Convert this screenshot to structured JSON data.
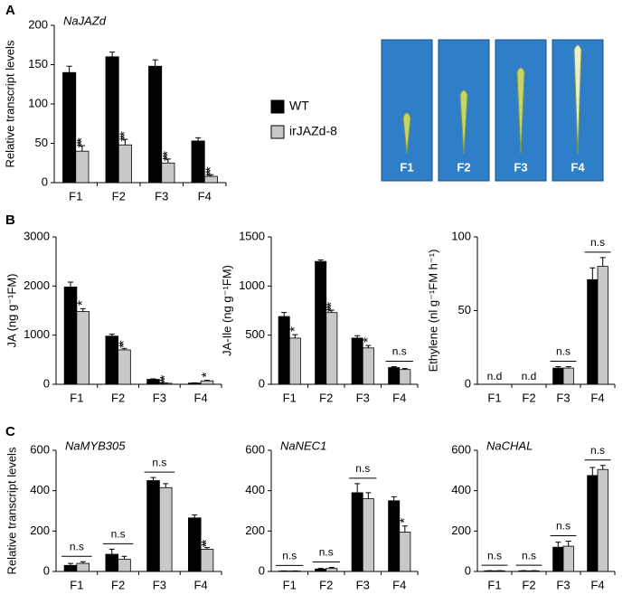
{
  "panels": [
    "A",
    "B",
    "C"
  ],
  "photos": [
    "F1",
    "F2",
    "F3",
    "F4"
  ],
  "chart_data": [
    {
      "type": "bar",
      "title": "NaJAZd",
      "ylabel": "Relative transcript levels",
      "categories": [
        "F1",
        "F2",
        "F3",
        "F4"
      ],
      "ylim": [
        0,
        200
      ],
      "yticks": [
        0,
        50,
        100,
        150,
        200
      ],
      "annotations": [
        "***",
        "***",
        "***",
        "***"
      ],
      "series": [
        {
          "name": "WT",
          "color": "#000000",
          "values": [
            140,
            160,
            148,
            53
          ],
          "errors": [
            8,
            6,
            8,
            4
          ]
        },
        {
          "name": "irJAZd-8",
          "color": "#c8c8c8",
          "values": [
            40,
            48,
            25,
            8
          ],
          "errors": [
            7,
            7,
            5,
            2
          ]
        }
      ]
    },
    {
      "type": "bar",
      "ylabel": "JA (ng g⁻¹FM)",
      "categories": [
        "F1",
        "F2",
        "F3",
        "F4"
      ],
      "ylim": [
        0,
        3000
      ],
      "yticks": [
        0,
        1000,
        2000,
        3000
      ],
      "annotations": [
        "*",
        "**",
        "***",
        "*"
      ],
      "series": [
        {
          "name": "WT",
          "color": "#000000",
          "values": [
            1980,
            980,
            100,
            25
          ],
          "errors": [
            100,
            40,
            10,
            5
          ]
        },
        {
          "name": "irJAZd-8",
          "color": "#c8c8c8",
          "values": [
            1480,
            700,
            20,
            70
          ],
          "errors": [
            60,
            30,
            5,
            10
          ]
        }
      ]
    },
    {
      "type": "bar",
      "ylabel": "JA-Ile (ng g⁻¹FM)",
      "categories": [
        "F1",
        "F2",
        "F3",
        "F4"
      ],
      "ylim": [
        0,
        1500
      ],
      "yticks": [
        0,
        500,
        1000,
        1500
      ],
      "annotations": [
        "*",
        "***",
        "*",
        "n.s"
      ],
      "series": [
        {
          "name": "WT",
          "color": "#000000",
          "values": [
            690,
            1250,
            470,
            170
          ],
          "errors": [
            40,
            15,
            25,
            10
          ]
        },
        {
          "name": "irJAZd-8",
          "color": "#c8c8c8",
          "values": [
            470,
            730,
            370,
            150
          ],
          "errors": [
            35,
            25,
            25,
            10
          ]
        }
      ]
    },
    {
      "type": "bar",
      "ylabel": "Ethylene (nl g⁻¹FM h⁻¹)",
      "categories": [
        "F1",
        "F2",
        "F3",
        "F4"
      ],
      "ylim": [
        0,
        100
      ],
      "yticks": [
        0,
        50,
        100
      ],
      "annotations": [
        "n.d",
        "n.d",
        "n.s",
        "n.s"
      ],
      "series": [
        {
          "name": "WT",
          "color": "#000000",
          "values": [
            null,
            null,
            11,
            71
          ],
          "errors": [
            null,
            null,
            1,
            8
          ]
        },
        {
          "name": "irJAZd-8",
          "color": "#c8c8c8",
          "values": [
            null,
            null,
            11,
            80
          ],
          "errors": [
            null,
            null,
            1,
            6
          ]
        }
      ]
    },
    {
      "type": "bar",
      "title": "NaMYB305",
      "ylabel": "Relative transcript levels",
      "categories": [
        "F1",
        "F2",
        "F3",
        "F4"
      ],
      "ylim": [
        0,
        600
      ],
      "yticks": [
        0,
        200,
        400,
        600
      ],
      "annotations": [
        "n.s",
        "n.s",
        "n.s",
        "**"
      ],
      "series": [
        {
          "name": "WT",
          "color": "#000000",
          "values": [
            30,
            85,
            450,
            265
          ],
          "errors": [
            10,
            25,
            15,
            15
          ]
        },
        {
          "name": "irJAZd-8",
          "color": "#c8c8c8",
          "values": [
            40,
            60,
            415,
            110
          ],
          "errors": [
            8,
            15,
            20,
            8
          ]
        }
      ]
    },
    {
      "type": "bar",
      "title": "NaNEC1",
      "categories": [
        "F1",
        "F2",
        "F3",
        "F4"
      ],
      "ylim": [
        0,
        600
      ],
      "yticks": [
        0,
        200,
        400,
        600
      ],
      "annotations": [
        "n.s",
        "n.s",
        "n.s",
        "*"
      ],
      "series": [
        {
          "name": "WT",
          "color": "#000000",
          "values": [
            2,
            12,
            390,
            350
          ],
          "errors": [
            1,
            3,
            45,
            20
          ]
        },
        {
          "name": "irJAZd-8",
          "color": "#c8c8c8",
          "values": [
            2,
            15,
            360,
            195
          ],
          "errors": [
            1,
            5,
            30,
            30
          ]
        }
      ]
    },
    {
      "type": "bar",
      "title": "NaCHAL",
      "categories": [
        "F1",
        "F2",
        "F3",
        "F4"
      ],
      "ylim": [
        0,
        600
      ],
      "yticks": [
        0,
        200,
        400,
        600
      ],
      "annotations": [
        "n.s",
        "n.s",
        "n.s",
        "n.s"
      ],
      "series": [
        {
          "name": "WT",
          "color": "#000000",
          "values": [
            3,
            3,
            120,
            475
          ],
          "errors": [
            1,
            1,
            25,
            40
          ]
        },
        {
          "name": "irJAZd-8",
          "color": "#c8c8c8",
          "values": [
            3,
            3,
            125,
            505
          ],
          "errors": [
            1,
            1,
            25,
            20
          ]
        }
      ]
    }
  ]
}
